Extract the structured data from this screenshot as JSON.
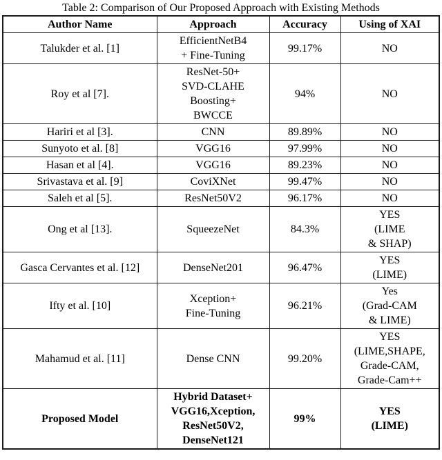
{
  "title": "Table 2: Comparison of Our Proposed Approach with Existing Methods",
  "table": {
    "headers": [
      "Author Name",
      "Approach",
      "Accuracy",
      "Using of XAI"
    ],
    "rows": [
      {
        "author": "Talukder et al. [1]",
        "approach": "EfficientNetB4\n+ Fine-Tuning",
        "accuracy": "99.17%",
        "xai": "NO",
        "bold": false
      },
      {
        "author": "Roy et al [7].",
        "approach": "ResNet-50+\nSVD-CLAHE\nBoosting+\nBWCCE",
        "accuracy": "94%",
        "xai": "NO",
        "bold": false
      },
      {
        "author": "Hariri et al [3].",
        "approach": "CNN",
        "accuracy": "89.89%",
        "xai": "NO",
        "bold": false
      },
      {
        "author": "Sunyoto et al. [8]",
        "approach": "VGG16",
        "accuracy": "97.99%",
        "xai": "NO",
        "bold": false
      },
      {
        "author": "Hasan et al [4].",
        "approach": "VGG16",
        "accuracy": "89.23%",
        "xai": "NO",
        "bold": false
      },
      {
        "author": "Srivastava et al. [9]",
        "approach": "CoviXNet",
        "accuracy": "99.47%",
        "xai": "NO",
        "bold": false
      },
      {
        "author": "Saleh et al [5].",
        "approach": "ResNet50V2",
        "accuracy": "96.17%",
        "xai": "NO",
        "bold": false
      },
      {
        "author": "Ong et al [13].",
        "approach": "SqueezeNet",
        "accuracy": "84.3%",
        "xai": "YES\n(LIME\n& SHAP)",
        "bold": false
      },
      {
        "author": "Gasca Cervantes et al. [12]",
        "approach": "DenseNet201",
        "accuracy": "96.47%",
        "xai": "YES\n(LIME)",
        "bold": false
      },
      {
        "author": "Ifty et al. [10]",
        "approach": "Xception+\nFine-Tuning",
        "accuracy": "96.21%",
        "xai": "Yes\n(Grad-CAM\n& LIME)",
        "bold": false
      },
      {
        "author": "Mahamud et al. [11]",
        "approach": "Dense CNN",
        "accuracy": "99.20%",
        "xai": "YES\n(LIME,SHAPE,\nGrade-CAM,\nGrade-Cam++",
        "bold": false
      },
      {
        "author": "Proposed Model",
        "approach": "Hybrid Dataset+\nVGG16,Xception,\nResNet50V2,\nDenseNet121",
        "accuracy": "99%",
        "xai": "YES\n(LIME)",
        "bold": true
      }
    ]
  }
}
